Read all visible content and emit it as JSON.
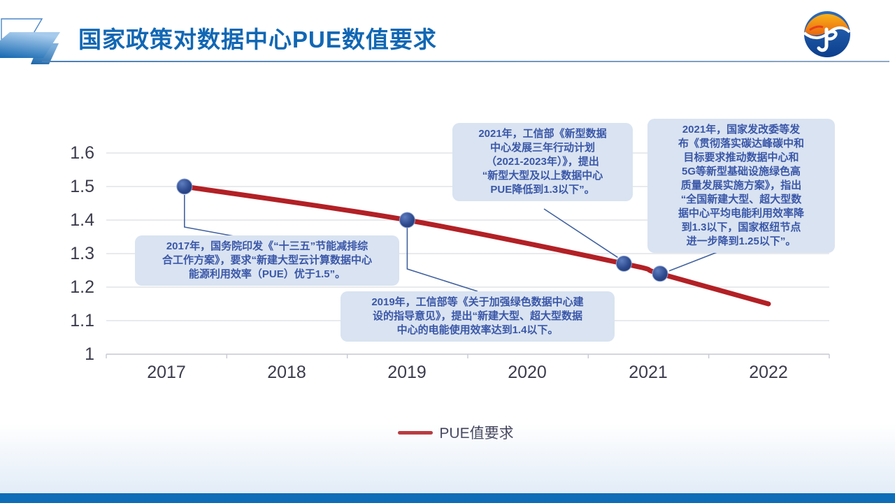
{
  "header": {
    "title": "国家政策对数据中心PUE数值要求"
  },
  "chart_data": {
    "type": "line",
    "title": "国家政策对数据中心PUE数值要求",
    "xlabel": "",
    "ylabel": "",
    "x_ticks": [
      "2017",
      "2018",
      "2019",
      "2020",
      "2021",
      "2022"
    ],
    "y_ticks": [
      "1.6",
      "1.5",
      "1.4",
      "1.3",
      "1.2",
      "1.1",
      "1"
    ],
    "ylim": [
      1.0,
      1.65
    ],
    "grid": true,
    "legend_position": "bottom",
    "legend_label": "PUE值要求",
    "series": [
      {
        "name": "PUE值要求",
        "color": "#B22025",
        "points": [
          {
            "x": 2017.15,
            "y": 1.5,
            "marker": true
          },
          {
            "x": 2019,
            "y": 1.4,
            "marker": true
          },
          {
            "x": 2020.8,
            "y": 1.27,
            "marker": true
          },
          {
            "x": 2021.1,
            "y": 1.24,
            "marker": true
          },
          {
            "x": 2022,
            "y": 1.15,
            "marker": false
          }
        ]
      }
    ]
  },
  "annotations": [
    {
      "id": "2017-guowuyuan",
      "lines": [
        "2017年，国务院印发《“十三五”节能减排综",
        "合工作方案》，要求“新建大型云计算数据中心",
        "能源利用效率（PUE）优于1.5”。"
      ]
    },
    {
      "id": "2019-gongxinbu",
      "lines": [
        "2019年，工信部等《关于加强绿色数据中心建",
        "设的指导意见》，提出“新建大型、超大型数据",
        "中心的电能使用效率达到1.4以下。"
      ]
    },
    {
      "id": "2021-gongxinbu",
      "lines": [
        "2021年，工信部《新型数据",
        "中心发展三年行动计划",
        "（2021-2023年）》，提出",
        "“新型大型及以上数据中心",
        "PUE降低到1.3以下”。"
      ]
    },
    {
      "id": "2021-fagaiwei",
      "lines": [
        "2021年，国家发改委等发",
        "布《贯彻落实碳达峰碳中和",
        "目标要求推动数据中心和",
        "5G等新型基础设施绿色高",
        "质量发展实施方案》，指出",
        "“全国新建大型、超大型数",
        "据中心平均电能利用效率降",
        "到1.3以下，国家枢纽节点",
        "进一步降到1.25以下”。"
      ]
    }
  ],
  "colors": {
    "title_blue": "#1167B4",
    "line_red": "#B22025",
    "marker_blue": "#2D4A8E",
    "callout_bg": "#D9E3F1",
    "callout_text": "#3A57A8",
    "connector": "#41619F",
    "footer_bar_blue": "#0E6DB6",
    "gridline": "#DCDDE2"
  }
}
